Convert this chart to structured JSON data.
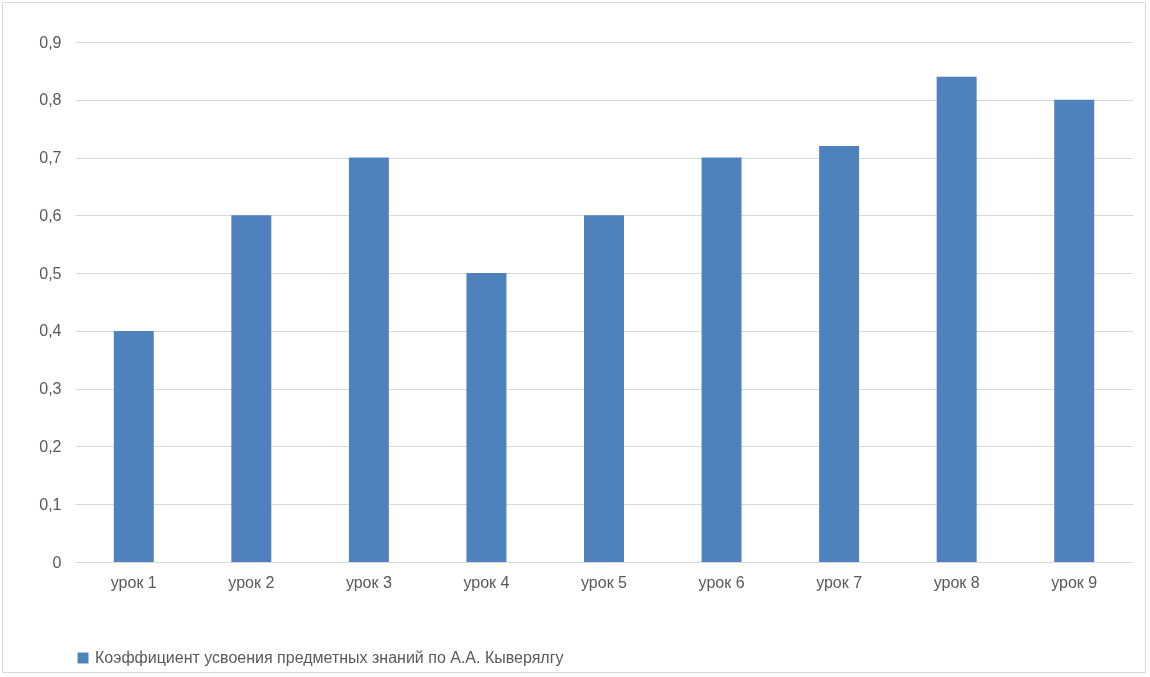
{
  "chart_data": {
    "type": "bar",
    "categories": [
      "урок 1",
      "урок 2",
      "урок 3",
      "урок 4",
      "урок 5",
      "урок 6",
      "урок 7",
      "урок 8",
      "урок 9"
    ],
    "series": [
      {
        "name": "Коэффициент усвоения предметных знаний по А.А. Кыверялгу",
        "color": "#4f81bd",
        "values": [
          0.4,
          0.6,
          0.7,
          0.5,
          0.6,
          0.7,
          0.72,
          0.84,
          0.8
        ]
      }
    ],
    "ylim": [
      0,
      0.9
    ],
    "yticks": [
      0,
      {
        "value": 0.1,
        "label": "0,1"
      },
      {
        "value": 0.2,
        "label": "0,2"
      },
      {
        "value": 0.3,
        "label": "0,3"
      },
      {
        "value": 0.4,
        "label": "0,4"
      },
      {
        "value": 0.5,
        "label": "0,5"
      },
      {
        "value": 0.6,
        "label": "0,6"
      },
      {
        "value": 0.7,
        "label": "0,7"
      },
      {
        "value": 0.8,
        "label": "0,8"
      },
      {
        "value": 0.9,
        "label": "0,9"
      }
    ],
    "grid": "y",
    "legend": "bottom"
  }
}
